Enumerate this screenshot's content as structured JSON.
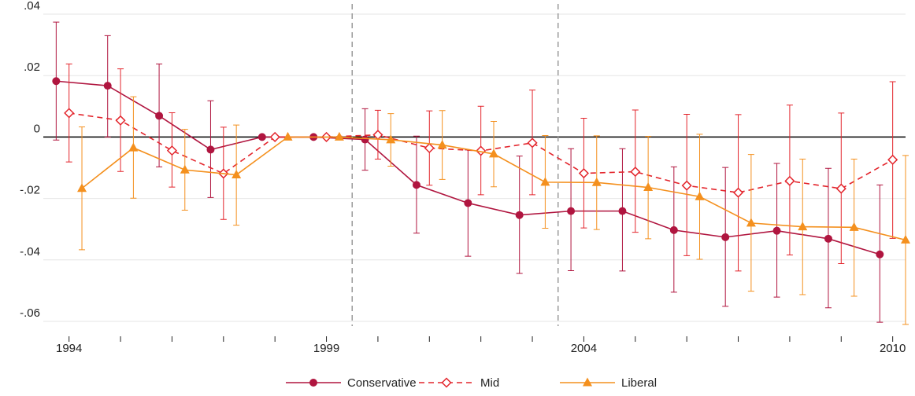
{
  "chart_data": {
    "type": "line",
    "x": [
      1994,
      1995,
      1996,
      1997,
      1998,
      1999,
      2000,
      2001,
      2002,
      2003,
      2004,
      2005,
      2006,
      2007,
      2008,
      2009,
      2010
    ],
    "xlim": [
      1993.5,
      2010.25
    ],
    "xticks": [
      1994,
      1999,
      2004,
      2010
    ],
    "xminorticks": [
      1995,
      1996,
      1997,
      1998,
      2000,
      2001,
      2002,
      2003,
      2005,
      2006,
      2007,
      2008,
      2009
    ],
    "ylim": [
      -0.06,
      0.04
    ],
    "yticks": [
      {
        "value": 0.04,
        "label": ".04"
      },
      {
        "value": 0.02,
        "label": ".02"
      },
      0,
      {
        "value": -0.02,
        "label": "-.02"
      },
      {
        "value": -0.04,
        "label": "-.04"
      },
      {
        "value": -0.06,
        "label": "-.06"
      }
    ],
    "grid": true,
    "vlines": [
      1999.5,
      2003.5
    ],
    "legend": "bottom",
    "series": [
      {
        "name": "Conservative",
        "color": "#b0153f",
        "marker": "circle",
        "dash": false,
        "values": [
          0.0182,
          0.0167,
          0.0069,
          -0.0041,
          0,
          0,
          -0.0008,
          -0.0156,
          -0.0215,
          -0.0254,
          -0.0241,
          -0.0241,
          -0.0303,
          -0.0326,
          -0.0305,
          -0.0331,
          -0.0382
        ],
        "lower": [
          -0.001,
          0.0,
          -0.0097,
          -0.0197,
          null,
          null,
          -0.0108,
          -0.0313,
          -0.0388,
          -0.0444,
          -0.0435,
          -0.0436,
          -0.0505,
          -0.0551,
          -0.0521,
          -0.0556,
          -0.0603
        ],
        "upper": [
          0.0374,
          0.033,
          0.0238,
          0.0118,
          null,
          null,
          0.0092,
          0.0003,
          -0.0042,
          -0.0062,
          -0.0038,
          -0.0038,
          -0.0097,
          -0.0099,
          -0.0086,
          -0.0102,
          -0.0156
        ]
      },
      {
        "name": "Mid",
        "color": "#e3252c",
        "marker": "diamond",
        "dash": true,
        "values": [
          0.0078,
          0.0054,
          -0.0044,
          -0.0119,
          0,
          0,
          0.0007,
          -0.0036,
          -0.0045,
          -0.0019,
          -0.0118,
          -0.0113,
          -0.0158,
          -0.0181,
          -0.0143,
          -0.0168,
          -0.0074
        ],
        "lower": [
          -0.0081,
          -0.0112,
          -0.0163,
          -0.0268,
          null,
          null,
          -0.0072,
          -0.0157,
          -0.0188,
          -0.0188,
          -0.0296,
          -0.031,
          -0.0386,
          -0.0436,
          -0.0384,
          -0.0412,
          -0.033
        ],
        "upper": [
          0.0238,
          0.0222,
          0.0079,
          0.0032,
          null,
          null,
          0.0087,
          0.0085,
          0.01,
          0.0153,
          0.0061,
          0.0088,
          0.0074,
          0.0073,
          0.0104,
          0.0078,
          0.018
        ]
      },
      {
        "name": "Liberal",
        "color": "#f4901e",
        "marker": "triangle",
        "dash": false,
        "values": [
          -0.0167,
          -0.0035,
          -0.0107,
          -0.0123,
          0,
          0,
          -0.0009,
          -0.0026,
          -0.0055,
          -0.0147,
          -0.0148,
          -0.0164,
          -0.0194,
          -0.028,
          -0.0292,
          -0.0294,
          -0.0335
        ],
        "lower": [
          -0.0367,
          -0.0199,
          -0.0238,
          -0.0287,
          null,
          null,
          -0.0095,
          -0.0138,
          -0.0162,
          -0.0297,
          -0.0301,
          -0.0331,
          -0.0398,
          -0.0502,
          -0.0513,
          -0.0518,
          -0.061
        ],
        "upper": [
          0.0033,
          0.0131,
          0.0025,
          0.0039,
          null,
          null,
          0.0076,
          0.0086,
          0.0051,
          0.0005,
          0.0004,
          0.0002,
          0.0009,
          -0.0057,
          -0.0072,
          -0.0072,
          -0.006
        ]
      }
    ]
  }
}
